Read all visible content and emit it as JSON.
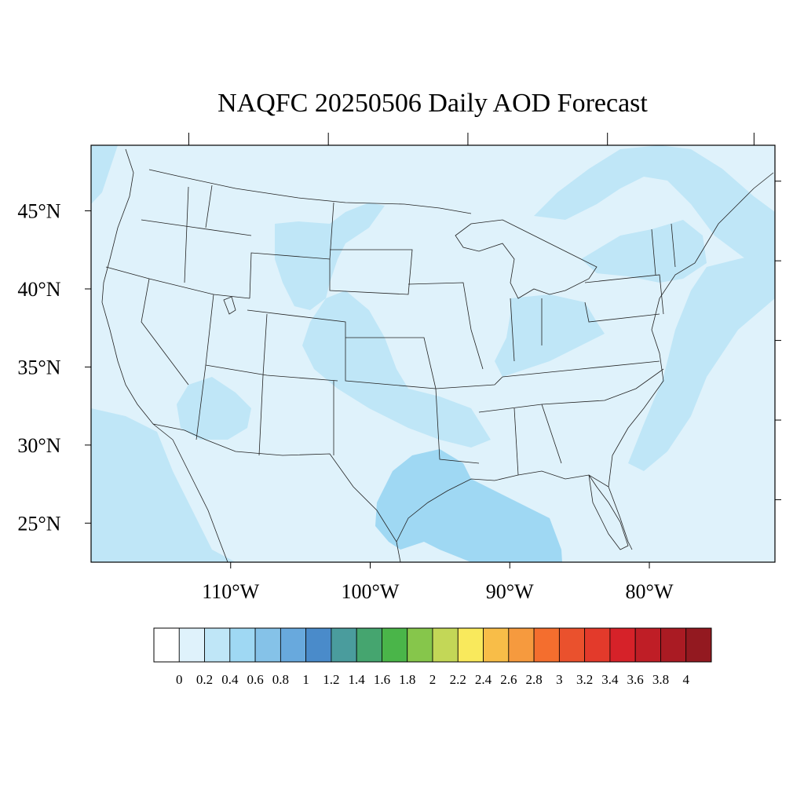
{
  "title": "NAQFC 20250506 Daily AOD Forecast",
  "map": {
    "lon_range": [
      -120,
      -71
    ],
    "lat_range": [
      22.5,
      49.2
    ],
    "lat_labels": [
      {
        "lat": 45,
        "label": "45°N"
      },
      {
        "lat": 40,
        "label": "40°N"
      },
      {
        "lat": 35,
        "label": "35°N"
      },
      {
        "lat": 30,
        "label": "30°N"
      },
      {
        "lat": 25,
        "label": "25°N"
      }
    ],
    "lon_labels": [
      {
        "lon": -110,
        "label": "110°W"
      },
      {
        "lon": -100,
        "label": "100°W"
      },
      {
        "lon": -90,
        "label": "90°W"
      },
      {
        "lon": -80,
        "label": "80°W"
      }
    ],
    "background_color": "#dff2fb",
    "aod_regions": [
      {
        "level": 0.2,
        "color": "#bfe6f7",
        "desc": "northern plains / rockies"
      },
      {
        "level": 0.2,
        "color": "#bfe6f7",
        "desc": "central plains band"
      },
      {
        "level": 0.2,
        "color": "#bfe6f7",
        "desc": "ohio valley / midwest"
      },
      {
        "level": 0.2,
        "color": "#bfe6f7",
        "desc": "northeast / new england"
      },
      {
        "level": 0.2,
        "color": "#bfe6f7",
        "desc": "canada east"
      },
      {
        "level": 0.2,
        "color": "#bfe6f7",
        "desc": "atlantic offshore"
      },
      {
        "level": 0.2,
        "color": "#bfe6f7",
        "desc": "arizona / mexico"
      },
      {
        "level": 0.2,
        "color": "#bfe6f7",
        "desc": "pacific coast"
      },
      {
        "level": 0.4,
        "color": "#9fd8f3",
        "desc": "texas gulf coast"
      }
    ]
  },
  "colorbar": {
    "colors": [
      "#ffffff",
      "#dff2fb",
      "#bfe6f7",
      "#9fd8f3",
      "#85c2e8",
      "#68a9dd",
      "#4a8bca",
      "#4a9c9d",
      "#45a56f",
      "#4ab549",
      "#86c64b",
      "#c3d757",
      "#f9e95c",
      "#f8bd48",
      "#f69a3e",
      "#f46e2e",
      "#ea512d",
      "#e33a2b",
      "#d62229",
      "#bf1e26",
      "#aa1b23",
      "#931920"
    ],
    "labels": [
      "0",
      "0.2",
      "0.4",
      "0.6",
      "0.8",
      "1",
      "1.2",
      "1.4",
      "1.6",
      "1.8",
      "2",
      "2.2",
      "2.4",
      "2.6",
      "2.8",
      "3",
      "3.2",
      "3.4",
      "3.6",
      "3.8",
      "4"
    ]
  }
}
